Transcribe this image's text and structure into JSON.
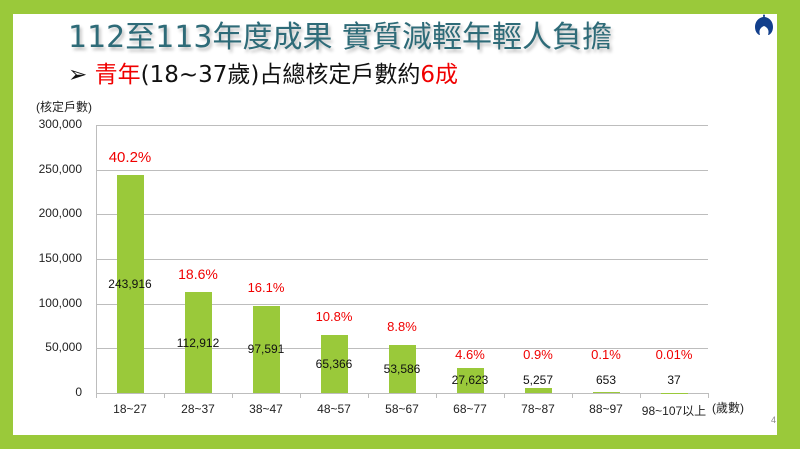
{
  "slide": {
    "title": "112至113年度成果  實質減輕年輕人負擔",
    "subtitle": {
      "bullet": "➢",
      "red_prefix": "青年",
      "middle": "(18~37歲)占總核定戶數約",
      "red_suffix": "6成"
    },
    "page_number": "4",
    "colors": {
      "frame": "#9ac93a",
      "bar": "#9ac93a",
      "title": "#2e6b78",
      "highlight": "#f00000"
    }
  },
  "chart_data": {
    "type": "bar",
    "title": "青年(18~37歲)占總核定戶數約6成",
    "xlabel": "(歲數)",
    "ylabel": "(核定戶數)",
    "ylim": [
      0,
      300000
    ],
    "yticks": [
      "0",
      "50,000",
      "100,000",
      "150,000",
      "200,000",
      "250,000",
      "300,000"
    ],
    "grid": true,
    "legend": "none",
    "categories": [
      "18~27",
      "28~37",
      "38~47",
      "48~57",
      "58~67",
      "68~77",
      "78~87",
      "88~97",
      "98~107以上"
    ],
    "values": [
      243916,
      112912,
      97591,
      65366,
      53586,
      27623,
      5257,
      653,
      37
    ],
    "value_labels": [
      "243,916",
      "112,912",
      "97,591",
      "65,366",
      "53,586",
      "27,623",
      "5,257",
      "653",
      "37"
    ],
    "percent_labels": [
      "40.2%",
      "18.6%",
      "16.1%",
      "10.8%",
      "8.8%",
      "4.6%",
      "0.9%",
      "0.1%",
      "0.01%"
    ]
  }
}
